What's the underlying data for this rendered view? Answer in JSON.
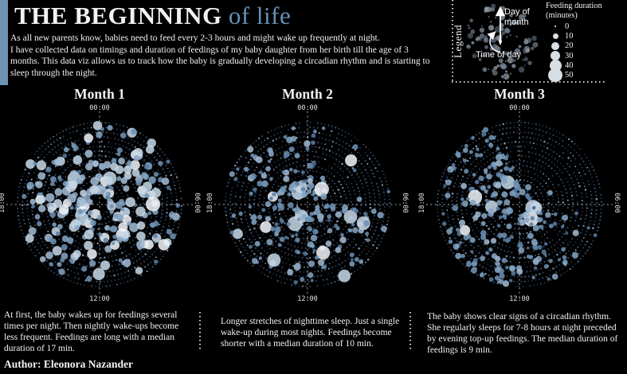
{
  "colors": {
    "background": "#000000",
    "accent_bar": "#6f93b0",
    "title_accent": "#6491b8",
    "bubble_palette": [
      "#46658a",
      "#5a7da3",
      "#6e91b4",
      "#85a5c4",
      "#a3bcd4",
      "#c6d7e6",
      "#f0f5fa"
    ],
    "grid_dot": "#2b3f57",
    "grid_dot_bright": "#7f98b2",
    "crosshair": "#c2cbd4",
    "legend_mini_palette": [
      "#4a5663",
      "#5f6d7b",
      "#75828f",
      "#8e9aa6"
    ],
    "size_legend_bubble": "#d6dde3"
  },
  "header": {
    "title_main": "THE BEGINNING",
    "title_accent": " of life",
    "intro_lines": [
      "As all new parents know, babies need to feed every 2-3 hours and might wake up frequently at night.",
      "I have collected data on timings and duration of feedings of my baby daughter from her birth till the age of 3",
      "months. This data viz allows us to track how the baby is gradually developing a circadian rhythm and is starting to",
      "sleep through the night."
    ]
  },
  "legend": {
    "label": "Legend",
    "day_axis_label_line1": "Day of",
    "day_axis_label_line2": "month",
    "time_axis_label": "Time of day",
    "size_title_line1": "Feeding duration",
    "size_title_line2": "(minutes)",
    "size_entries": [
      {
        "label": "0",
        "d": 1.5
      },
      {
        "label": "10",
        "d": 7
      },
      {
        "label": "20",
        "d": 10
      },
      {
        "label": "30",
        "d": 12.5
      },
      {
        "label": "40",
        "d": 15
      },
      {
        "label": "50",
        "d": 17.5
      }
    ]
  },
  "chart_data": {
    "type": "scatter",
    "subtype": "polar_bubble_clock",
    "description": "Each bubble is one feeding of the baby. Angle = time of day (00:00 at top, clockwise), radius = day of month (day 1 at center, grows outward), bubble size = feeding duration in minutes.",
    "angle_axis": {
      "label": "Time of day",
      "ticks": [
        "00:00",
        "06:00",
        "12:00",
        "18:00"
      ],
      "direction": "clockwise",
      "zero_at": "top"
    },
    "radius_axis": {
      "label": "Day of month",
      "range": [
        1,
        30
      ]
    },
    "size_axis": {
      "label": "Feeding duration (minutes)",
      "ticks": [
        0,
        10,
        20,
        30,
        40,
        50
      ]
    },
    "grid": "dotted concentric rings with dashed crosshair at 00:00/06:00/12:00/18:00",
    "months": [
      {
        "title": "Month 1",
        "median_duration_min": 17,
        "n_points": 265,
        "night_gap": null,
        "pattern": "feedings at all hours of day and night, long durations"
      },
      {
        "title": "Month 2",
        "median_duration_min": 10,
        "n_points": 225,
        "night_gap": {
          "start_hour": 0.8,
          "end_hour": 6.2,
          "strength": 0.8,
          "min_day": 6
        },
        "pattern": "partial empty sector between 00:00 and 06:00 on later days"
      },
      {
        "title": "Month 3",
        "median_duration_min": 9,
        "n_points": 205,
        "night_gap": {
          "start_hour": 23.4,
          "end_hour": 7.0,
          "strength": 0.97,
          "min_day": 2
        },
        "evening_cluster": true,
        "pattern": "clear empty night sector ~23:00-07:00, cluster of evening top-up feedings"
      }
    ]
  },
  "captions": [
    {
      "lines": [
        "At first, the baby wakes up for feedings several",
        "times per night. Then nightly wake-ups become",
        "less frequent. Feedings are long with a median",
        "duration of 17 min."
      ]
    },
    {
      "lines": [
        "Longer stretches of nighttime sleep. Just a single",
        "wake-up during most nights. Feedings become",
        "shorter with a median duration of 10 min."
      ]
    },
    {
      "lines": [
        "The baby shows clear signs of a circadian rhythm.",
        "She regularly sleeps for 7-8 hours at night preceded",
        "by evening top-up feedings. The median duration of",
        "feedings is 9 min."
      ]
    }
  ],
  "author": "Author: Eleonora Nazander"
}
